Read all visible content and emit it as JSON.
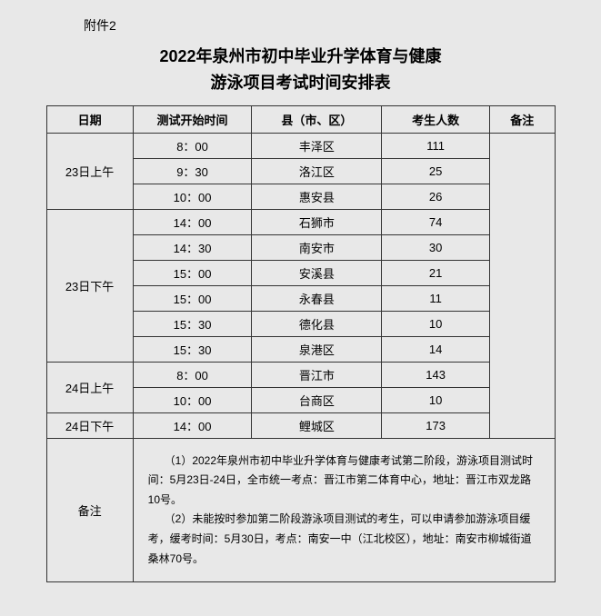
{
  "attachment": "附件2",
  "title_line1": "2022年泉州市初中毕业升学体育与健康",
  "title_line2": "游泳项目考试时间安排表",
  "headers": {
    "date": "日期",
    "time": "测试开始时间",
    "county": "县（市、区）",
    "count": "考生人数",
    "note": "备注"
  },
  "groups": [
    {
      "date": "23日上午",
      "rows": [
        {
          "time": "8：00",
          "county": "丰泽区",
          "count": "111"
        },
        {
          "time": "9：30",
          "county": "洛江区",
          "count": "25"
        },
        {
          "time": "10：00",
          "county": "惠安县",
          "count": "26"
        }
      ]
    },
    {
      "date": "23日下午",
      "rows": [
        {
          "time": "14：00",
          "county": "石狮市",
          "count": "74"
        },
        {
          "time": "14：30",
          "county": "南安市",
          "count": "30"
        },
        {
          "time": "15：00",
          "county": "安溪县",
          "count": "21"
        },
        {
          "time": "15：00",
          "county": "永春县",
          "count": "11"
        },
        {
          "time": "15：30",
          "county": "德化县",
          "count": "10"
        },
        {
          "time": "15：30",
          "county": "泉港区",
          "count": "14"
        }
      ]
    },
    {
      "date": "24日上午",
      "rows": [
        {
          "time": "8：00",
          "county": "晋江市",
          "count": "143"
        },
        {
          "time": "10：00",
          "county": "台商区",
          "count": "10"
        }
      ]
    },
    {
      "date": "24日下午",
      "rows": [
        {
          "time": "14：00",
          "county": "鲤城区",
          "count": "173"
        }
      ]
    }
  ],
  "notes_label": "备注",
  "notes_text": "　　（1）2022年泉州市初中毕业升学体育与健康考试第二阶段，游泳项目测试时间：5月23日-24日，全市统一考点：晋江市第二体育中心，地址：晋江市双龙路10号。\n　　（2）未能按时参加第二阶段游泳项目测试的考生，可以申请参加游泳项目缓考，缓考时间：5月30日，考点：南安一中（江北校区），地址：南安市柳城街道桑林70号。"
}
